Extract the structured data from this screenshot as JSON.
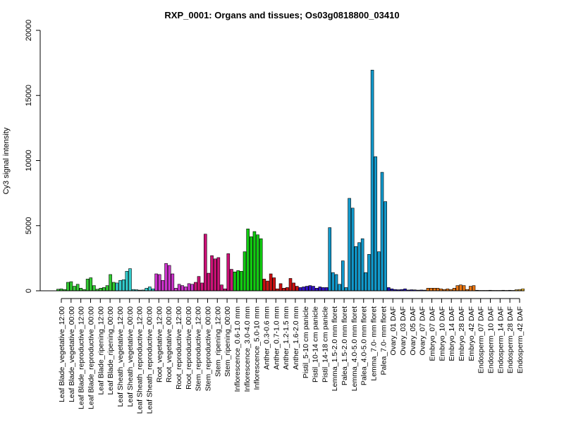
{
  "chart_data": {
    "type": "bar",
    "title": "RXP_0001: Organs and tissues; Os03g0818800_03410",
    "xlabel": "",
    "ylabel": "Cy3 signal intensity",
    "ylim": [
      0,
      20000
    ],
    "yticks": [
      0,
      5000,
      10000,
      15000,
      20000
    ],
    "grid": false,
    "legend": "none",
    "categories": [
      "Leaf Blade_vegetative_12:00",
      "Leaf Blade_vegetative_00:00",
      "Leaf Blade_reproductive_12:00",
      "Leaf Blade_reproductive_00:00",
      "Leaf Blade_ripening_12:00",
      "Leaf Blade_ripening_00:00",
      "Leaf Sheath_vegetative_12:00",
      "Leaf Sheath_vegetative_00:00",
      "Leaf Sheath_reproductive_12:00",
      "Leaf Sheath_reproductive_00:00",
      "Root_vegetative_12:00",
      "Root_vegetative_00:00",
      "Root_reproductive_12:00",
      "Root_reproductive_00:00",
      "Stem_reproductive_12:00",
      "Stem_reproductive_00:00",
      "Stem_ripening_12:00",
      "Stem_ripening_00:00",
      "Inflorescence_0.6-1.0 mm",
      "Inflorescence_3.0-4.0 mm",
      "Inflorescence_5.0-10 mm",
      "Anther_0.3-0.6 mm",
      "Anther_0.7-1.0 mm",
      "Anther_1.2-1.5 mm",
      "Anther_1.6-2.0 mm",
      "Pistil_5-10 cm panicle",
      "Pistil_10-14 cm panicle",
      "Pistil_14-18 cm panicle",
      "Lemma_1.5-2.0 mm floret",
      "Palea_1.5-2.0 mm floret",
      "Lemma_4.0-5.0 mm floret",
      "Palea_4.0-5.0 mm floret",
      "Lemma_7.0- mm floret",
      "Palea_7.0- mm floret",
      "Ovary_01 DAF",
      "Ovary_03 DAF",
      "Ovary_05 DAF",
      "Ovary_07 DAF",
      "Embryo_07 DAF",
      "Embryo_10 DAF",
      "Embryo_14 DAF",
      "Embryo_28 DAF",
      "Embryo_42 DAF",
      "Endosperm_07 DAF",
      "Endosperm_10 DAF",
      "Endosperm_14 DAF",
      "Endosperm_28 DAF",
      "Endosperm_42 DAF"
    ],
    "groups": [
      {
        "color": "#33cc33",
        "values": [
          120,
          150,
          100
        ]
      },
      {
        "color": "#33cc33",
        "values": [
          650,
          700,
          350
        ]
      },
      {
        "color": "#33cc33",
        "values": [
          500,
          200,
          100
        ]
      },
      {
        "color": "#33cc33",
        "values": [
          900,
          1000,
          400
        ]
      },
      {
        "color": "#33cc33",
        "values": [
          120,
          200,
          250
        ]
      },
      {
        "color": "#33cc33",
        "values": [
          400,
          1250,
          650
        ]
      },
      {
        "color": "#33cccc",
        "values": [
          600,
          800,
          850
        ]
      },
      {
        "color": "#33cccc",
        "values": [
          1500,
          1700,
          100
        ]
      },
      {
        "color": "#33cccc",
        "values": [
          80,
          50,
          60
        ]
      },
      {
        "color": "#33cccc",
        "values": [
          200,
          300,
          150
        ]
      },
      {
        "color": "#cc33cc",
        "values": [
          1300,
          1250,
          800
        ]
      },
      {
        "color": "#cc33cc",
        "values": [
          2100,
          1950,
          1300
        ]
      },
      {
        "color": "#cc33cc",
        "values": [
          200,
          500,
          400
        ]
      },
      {
        "color": "#cc33cc",
        "values": [
          300,
          550,
          500
        ]
      },
      {
        "color": "#cc1177",
        "values": [
          650,
          1100,
          600
        ]
      },
      {
        "color": "#cc1177",
        "values": [
          4350,
          1350,
          2700
        ]
      },
      {
        "color": "#cc1177",
        "values": [
          2450,
          2550,
          450
        ]
      },
      {
        "color": "#cc1177",
        "values": [
          150,
          2850,
          1650
        ]
      },
      {
        "color": "#11cc11",
        "values": [
          1450,
          1550,
          1500
        ]
      },
      {
        "color": "#11cc11",
        "values": [
          3000,
          4750,
          4150
        ]
      },
      {
        "color": "#11cc11",
        "values": [
          4550,
          4300,
          4000
        ]
      },
      {
        "color": "#cc1111",
        "values": [
          900,
          750
        ]
      },
      {
        "color": "#cc1111",
        "values": [
          1300,
          1000,
          150
        ]
      },
      {
        "color": "#cc1111",
        "values": [
          550,
          200,
          250
        ]
      },
      {
        "color": "#cc1111",
        "values": [
          950,
          600,
          350
        ]
      },
      {
        "color": "#3311cc",
        "values": [
          250,
          300,
          350
        ]
      },
      {
        "color": "#3311cc",
        "values": [
          400,
          350,
          200
        ]
      },
      {
        "color": "#3311cc",
        "values": [
          300,
          250,
          250
        ]
      },
      {
        "color": "#1199cc",
        "values": [
          4850,
          1400,
          1250
        ]
      },
      {
        "color": "#1199cc",
        "values": [
          500,
          2300,
          250
        ]
      },
      {
        "color": "#1199cc",
        "values": [
          7100,
          6350,
          3400
        ]
      },
      {
        "color": "#1199cc",
        "values": [
          3700,
          4000,
          1400
        ]
      },
      {
        "color": "#1199cc",
        "values": [
          2800,
          16950,
          10300
        ]
      },
      {
        "color": "#1199cc",
        "values": [
          3000,
          9100,
          6850
        ]
      },
      {
        "color": "#2211bb",
        "values": [
          250,
          150,
          100
        ]
      },
      {
        "color": "#2211bb",
        "values": [
          80,
          100,
          150
        ]
      },
      {
        "color": "#2211bb",
        "values": [
          60,
          80,
          70
        ]
      },
      {
        "color": "#2211bb",
        "values": [
          50,
          60,
          50
        ]
      },
      {
        "color": "#ee7711",
        "values": [
          200,
          200,
          200
        ]
      },
      {
        "color": "#ee7711",
        "values": [
          200,
          150,
          100
        ]
      },
      {
        "color": "#ee7711",
        "values": [
          150,
          100,
          200
        ]
      },
      {
        "color": "#ee7711",
        "values": [
          400,
          450,
          400
        ]
      },
      {
        "color": "#ee7711",
        "values": [
          100,
          350,
          400
        ]
      },
      {
        "color": "#eebb33",
        "values": [
          40,
          30,
          30
        ]
      },
      {
        "color": "#eebb33",
        "values": [
          30,
          40,
          30
        ]
      },
      {
        "color": "#eebb33",
        "values": [
          30,
          30,
          40
        ]
      },
      {
        "color": "#eebb33",
        "values": [
          30,
          40,
          30
        ]
      },
      {
        "color": "#eebb33",
        "values": [
          80,
          100,
          150
        ]
      }
    ]
  }
}
